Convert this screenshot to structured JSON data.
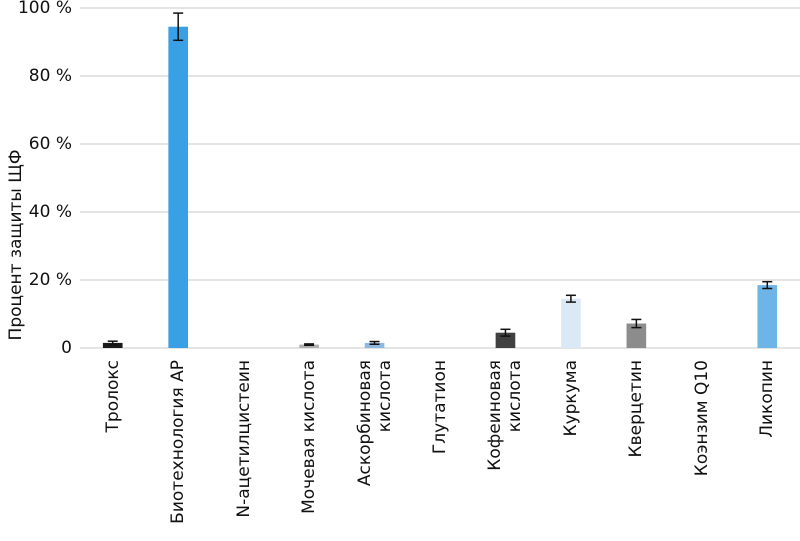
{
  "chart_data": {
    "type": "bar",
    "y_label": "Процент защиты ЩФ",
    "categories": [
      "Тролокс",
      "Биотехнология AP",
      "N-ацетилцистеин",
      "Мочевая кислота",
      "Аскорбиновая\nкислота",
      "Глутатион",
      "Кофеиновая\nкислота",
      "Куркума",
      "Кверцетин",
      "Коэнзим Q10",
      "Ликопин"
    ],
    "values": [
      1.5,
      94.5,
      0,
      1,
      1.5,
      0,
      4.5,
      14.5,
      7.2,
      0,
      18.5
    ],
    "errors": [
      0.5,
      4,
      null,
      0.2,
      0.4,
      null,
      1,
      1,
      1.2,
      null,
      1
    ],
    "colors": [
      "#1a1a1a",
      "#3aa0e6",
      "#b0b0b0",
      "#b0b0b0",
      "#8fb8e0",
      "#b0b0b0",
      "#404040",
      "#dbe9f7",
      "#8c8c8c",
      "#b0b0b0",
      "#6fb4e6"
    ],
    "ylim": [
      0,
      100
    ],
    "yticks": [
      0,
      {
        "value": 20,
        "label": "20 %"
      },
      {
        "value": 40,
        "label": "40 %"
      },
      {
        "value": 60,
        "label": "60 %"
      },
      {
        "value": 80,
        "label": "80 %"
      },
      {
        "value": 100,
        "label": "100 %"
      }
    ],
    "grid": true
  }
}
